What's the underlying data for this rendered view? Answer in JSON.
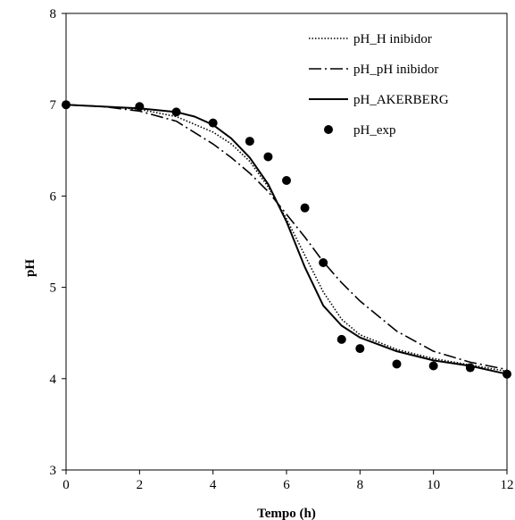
{
  "chart_data": {
    "type": "line",
    "title": "",
    "xlabel": "Tempo (h)",
    "ylabel": "pH",
    "xlim": [
      0,
      12
    ],
    "ylim": [
      3,
      8
    ],
    "x_ticks": [
      0,
      2,
      4,
      6,
      8,
      10,
      12
    ],
    "y_ticks": [
      3,
      4,
      5,
      6,
      7,
      8
    ],
    "grid": false,
    "legend_position": "top-right",
    "series": [
      {
        "name": "pH_H inibidor",
        "style": "dotted",
        "color": "#000000",
        "x": [
          0,
          1,
          2,
          3,
          4,
          4.5,
          5,
          5.5,
          6,
          6.5,
          7,
          7.5,
          8,
          9,
          10,
          11,
          12
        ],
        "y": [
          7.0,
          6.98,
          6.95,
          6.87,
          6.7,
          6.57,
          6.38,
          6.1,
          5.75,
          5.35,
          4.95,
          4.65,
          4.48,
          4.32,
          4.22,
          4.15,
          4.08
        ]
      },
      {
        "name": "pH_pH inibidor",
        "style": "dashdot",
        "color": "#000000",
        "x": [
          0,
          1,
          2,
          3,
          4,
          4.5,
          5,
          5.5,
          6,
          6.5,
          7,
          7.5,
          8,
          9,
          10,
          11,
          12
        ],
        "y": [
          7.0,
          6.98,
          6.93,
          6.82,
          6.57,
          6.42,
          6.25,
          6.05,
          5.8,
          5.55,
          5.28,
          5.05,
          4.85,
          4.52,
          4.3,
          4.18,
          4.1
        ]
      },
      {
        "name": "pH_AKERBERG",
        "style": "solid",
        "color": "#000000",
        "x": [
          0,
          1,
          2,
          3,
          3.5,
          4,
          4.5,
          5,
          5.5,
          6,
          6.5,
          7,
          7.5,
          8,
          9,
          10,
          11,
          12
        ],
        "y": [
          7.0,
          6.98,
          6.96,
          6.92,
          6.87,
          6.78,
          6.63,
          6.42,
          6.13,
          5.72,
          5.22,
          4.8,
          4.58,
          4.45,
          4.3,
          4.2,
          4.14,
          4.05
        ]
      },
      {
        "name": "pH_exp",
        "style": "markers",
        "color": "#000000",
        "x": [
          0,
          2,
          3,
          4,
          5,
          5.5,
          6,
          6.5,
          7,
          7.5,
          8,
          9,
          10,
          11,
          12
        ],
        "y": [
          7.0,
          6.98,
          6.92,
          6.8,
          6.6,
          6.43,
          6.17,
          5.87,
          5.27,
          4.43,
          4.33,
          4.16,
          4.14,
          4.12,
          4.05
        ]
      }
    ]
  }
}
